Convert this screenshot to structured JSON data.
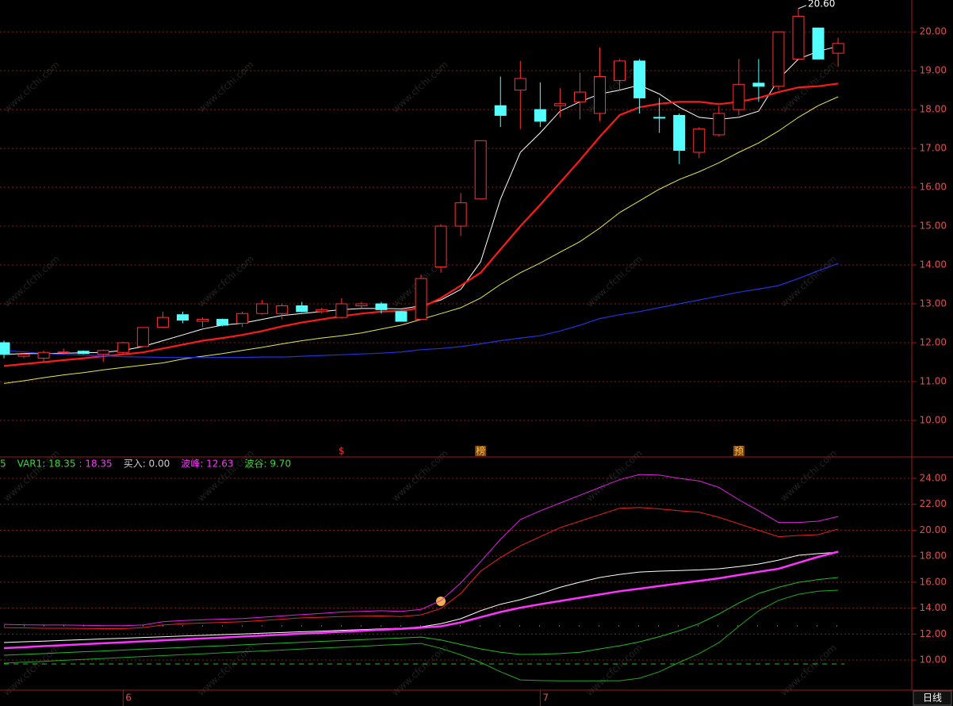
{
  "watermark": "www.cfchi.com",
  "period_label": "日线",
  "chart_data": [
    {
      "type": "candlestick",
      "up_color": "#ff3232",
      "down_color": "#54ffff",
      "grid": true,
      "ylim": [
        9.08,
        20.82
      ],
      "yticks": [
        {
          "value": 10,
          "label": "10.00"
        },
        {
          "value": 11,
          "label": "11.00"
        },
        {
          "value": 12,
          "label": "12.00"
        },
        {
          "value": 13,
          "label": "13.00"
        },
        {
          "value": 14,
          "label": "14.00"
        },
        {
          "value": 15,
          "label": "15.00"
        },
        {
          "value": 16,
          "label": "16.00"
        },
        {
          "value": 17,
          "label": "17.00"
        },
        {
          "value": 18,
          "label": "18.00"
        },
        {
          "value": 19,
          "label": "19.00"
        },
        {
          "value": 20,
          "label": "20.00"
        }
      ],
      "open": [
        12.0,
        11.65,
        11.6,
        11.74,
        11.78,
        11.7,
        11.75,
        11.9,
        12.4,
        12.72,
        12.55,
        12.6,
        12.5,
        12.75,
        12.75,
        12.95,
        12.8,
        12.65,
        12.95,
        13.0,
        12.8,
        12.6,
        13.95,
        15.0,
        15.7,
        18.1,
        18.5,
        18.0,
        18.1,
        18.2,
        17.9,
        18.75,
        19.25,
        17.8,
        17.85,
        16.9,
        17.35,
        18.0,
        18.68,
        18.6,
        19.3,
        20.1,
        19.45
      ],
      "high": [
        12.05,
        11.72,
        11.8,
        11.85,
        11.8,
        11.82,
        12.02,
        12.4,
        12.8,
        12.8,
        12.65,
        12.62,
        12.8,
        13.1,
        13.0,
        13.05,
        12.9,
        13.15,
        13.05,
        13.05,
        12.82,
        13.75,
        15.05,
        15.85,
        17.2,
        18.85,
        19.25,
        18.7,
        18.55,
        18.95,
        19.6,
        19.3,
        19.3,
        18.3,
        17.9,
        17.55,
        18.1,
        19.3,
        19.3,
        20.0,
        20.6,
        20.1,
        19.85
      ],
      "low": [
        11.6,
        11.6,
        11.5,
        11.7,
        11.7,
        11.5,
        11.72,
        11.88,
        12.38,
        12.5,
        12.4,
        12.42,
        12.4,
        12.72,
        12.6,
        12.78,
        12.75,
        12.62,
        12.9,
        12.75,
        12.55,
        12.58,
        13.8,
        14.75,
        15.68,
        17.55,
        17.5,
        17.55,
        17.8,
        17.75,
        17.7,
        18.5,
        17.9,
        17.4,
        16.6,
        16.75,
        17.3,
        17.85,
        18.2,
        18.5,
        19.3,
        19.3,
        19.1
      ],
      "close": [
        11.7,
        11.7,
        11.75,
        11.76,
        11.72,
        11.8,
        12.0,
        12.39,
        12.65,
        12.58,
        12.6,
        12.45,
        12.75,
        13.0,
        12.95,
        12.8,
        12.85,
        13.0,
        13.0,
        12.85,
        12.55,
        13.65,
        15.0,
        15.6,
        17.2,
        17.85,
        18.8,
        17.7,
        18.15,
        18.45,
        18.85,
        19.25,
        18.3,
        17.78,
        16.95,
        17.5,
        17.9,
        18.65,
        18.6,
        20.0,
        20.4,
        19.3,
        19.7
      ],
      "high_label": {
        "text": "20.60",
        "value": 20.6
      },
      "signals": [
        null,
        null,
        null,
        null,
        null,
        null,
        null,
        null,
        null,
        null,
        null,
        null,
        null,
        null,
        null,
        null,
        null,
        "$",
        null,
        null,
        null,
        null,
        null,
        null,
        "榜",
        null,
        null,
        null,
        null,
        null,
        null,
        null,
        null,
        null,
        null,
        null,
        null,
        "预",
        null,
        null,
        null,
        null,
        null
      ],
      "series": [
        {
          "color": "#ffffff",
          "width": 1,
          "values": [
            11.7,
            11.72,
            11.72,
            11.73,
            11.74,
            11.75,
            11.8,
            11.9,
            12.05,
            12.2,
            12.35,
            12.45,
            12.5,
            12.6,
            12.7,
            12.75,
            12.8,
            12.85,
            12.88,
            12.88,
            12.87,
            12.95,
            13.1,
            13.37,
            14.08,
            15.7,
            16.9,
            17.4,
            17.96,
            18.2,
            18.4,
            18.5,
            18.63,
            18.4,
            18.06,
            17.8,
            17.75,
            17.8,
            17.96,
            18.78,
            19.3,
            19.5,
            19.63
          ]
        },
        {
          "color": "#ff1a1a",
          "width": 2.2,
          "values": [
            11.4,
            11.45,
            11.5,
            11.55,
            11.6,
            11.65,
            11.7,
            11.75,
            11.85,
            11.95,
            12.05,
            12.12,
            12.2,
            12.3,
            12.42,
            12.52,
            12.6,
            12.68,
            12.75,
            12.8,
            12.82,
            12.9,
            13.15,
            13.47,
            13.8,
            14.4,
            15.0,
            15.55,
            16.12,
            16.7,
            17.3,
            17.86,
            18.06,
            18.15,
            18.2,
            18.2,
            18.14,
            18.2,
            18.3,
            18.45,
            18.57,
            18.6,
            18.67
          ]
        },
        {
          "color": "#e8e84a",
          "width": 1,
          "values": [
            10.95,
            11.02,
            11.1,
            11.17,
            11.23,
            11.3,
            11.36,
            11.42,
            11.48,
            11.58,
            11.65,
            11.72,
            11.8,
            11.88,
            11.97,
            12.05,
            12.12,
            12.18,
            12.25,
            12.35,
            12.45,
            12.6,
            12.75,
            12.9,
            13.15,
            13.5,
            13.8,
            14.05,
            14.33,
            14.6,
            14.95,
            15.35,
            15.65,
            15.95,
            16.2,
            16.4,
            16.63,
            16.9,
            17.14,
            17.45,
            17.8,
            18.1,
            18.33
          ]
        },
        {
          "color": "#2233dd",
          "width": 1.2,
          "values": [
            11.8,
            11.76,
            11.72,
            11.7,
            11.68,
            11.66,
            11.64,
            11.63,
            11.62,
            11.62,
            11.62,
            11.62,
            11.62,
            11.63,
            11.63,
            11.65,
            11.67,
            11.69,
            11.71,
            11.73,
            11.76,
            11.82,
            11.85,
            11.9,
            11.97,
            12.05,
            12.12,
            12.18,
            12.3,
            12.45,
            12.62,
            12.72,
            12.8,
            12.9,
            13.0,
            13.1,
            13.2,
            13.3,
            13.38,
            13.47,
            13.65,
            13.85,
            14.04
          ]
        }
      ]
    },
    {
      "type": "line",
      "grid": true,
      "ylim": [
        7.68,
        25.53
      ],
      "yticks": [
        {
          "value": 10,
          "label": "10.00"
        },
        {
          "value": 12,
          "label": "12.00"
        },
        {
          "value": 14,
          "label": "14.00"
        },
        {
          "value": 16,
          "label": "16.00"
        },
        {
          "value": 18,
          "label": "18.00"
        },
        {
          "value": 20,
          "label": "20.00"
        },
        {
          "value": 22,
          "label": "22.00"
        },
        {
          "value": 24,
          "label": "24.00"
        }
      ],
      "categories": [
        null,
        null,
        null,
        null,
        null,
        null,
        "6",
        null,
        null,
        null,
        null,
        null,
        null,
        null,
        null,
        null,
        null,
        null,
        null,
        null,
        null,
        null,
        null,
        null,
        null,
        null,
        null,
        "7",
        null,
        null,
        null,
        null,
        null,
        null,
        null,
        null,
        null,
        null,
        null,
        null,
        null,
        null,
        null
      ],
      "header": [
        {
          "text": "5",
          "color": "#33dd33"
        },
        {
          "text": "VAR1: 18.35",
          "color": "#33dd33"
        },
        {
          "text": ": 18.35",
          "color": "#ff33ff"
        },
        {
          "text": "买入: 0.00",
          "color": "#cccccc"
        },
        {
          "text": "波峰: 12.63",
          "color": "#ff33ff"
        },
        {
          "text": "波谷: 9.70",
          "color": "#33dd33"
        }
      ],
      "levels": [
        {
          "value": 12.63,
          "color": "#bbbbbb",
          "dash": "1 24"
        },
        {
          "value": 9.7,
          "color": "#22bb22",
          "dash": "6 6"
        }
      ],
      "series": [
        {
          "color": "#e020e0",
          "width": 1,
          "values": [
            12.75,
            12.72,
            12.7,
            12.7,
            12.68,
            12.65,
            12.65,
            12.7,
            12.95,
            13.05,
            13.1,
            13.15,
            13.2,
            13.3,
            13.4,
            13.5,
            13.6,
            13.7,
            13.75,
            13.8,
            13.75,
            13.9,
            14.58,
            15.93,
            17.58,
            19.3,
            20.82,
            21.5,
            22.1,
            22.7,
            23.3,
            23.9,
            24.3,
            24.25,
            24.0,
            23.8,
            23.3,
            22.35,
            21.5,
            20.6,
            20.6,
            20.7,
            21.06
          ]
        },
        {
          "color": "#ee2020",
          "width": 1,
          "values": [
            12.5,
            12.48,
            12.45,
            12.45,
            12.43,
            12.42,
            12.42,
            12.5,
            12.7,
            12.8,
            12.85,
            12.9,
            12.95,
            13.05,
            13.15,
            13.25,
            13.3,
            13.35,
            13.38,
            13.4,
            13.35,
            13.48,
            13.97,
            15.13,
            16.85,
            17.9,
            18.8,
            19.5,
            20.2,
            20.7,
            21.2,
            21.7,
            21.75,
            21.65,
            21.5,
            21.4,
            21.0,
            20.5,
            20.0,
            19.5,
            19.6,
            19.66,
            20.1
          ]
        },
        {
          "color": "#ffffff",
          "width": 1,
          "values": [
            11.35,
            11.41,
            11.46,
            11.52,
            11.57,
            11.63,
            11.68,
            11.74,
            11.79,
            11.85,
            11.9,
            11.96,
            12.01,
            12.07,
            12.12,
            12.18,
            12.23,
            12.29,
            12.34,
            12.4,
            12.45,
            12.55,
            12.8,
            13.18,
            13.8,
            14.3,
            14.65,
            15.1,
            15.6,
            16.0,
            16.36,
            16.6,
            16.78,
            16.85,
            16.9,
            16.95,
            17.03,
            17.2,
            17.4,
            17.7,
            18.07,
            18.2,
            18.31
          ]
        },
        {
          "color": "#ff33ff",
          "width": 2.5,
          "values": [
            10.92,
            10.99,
            11.07,
            11.14,
            11.22,
            11.29,
            11.36,
            11.44,
            11.51,
            11.59,
            11.66,
            11.73,
            11.81,
            11.88,
            11.96,
            12.03,
            12.1,
            12.18,
            12.25,
            12.33,
            12.4,
            12.5,
            12.6,
            12.9,
            13.3,
            13.7,
            14.03,
            14.3,
            14.55,
            14.8,
            15.05,
            15.3,
            15.5,
            15.7,
            15.9,
            16.1,
            16.3,
            16.55,
            16.8,
            17.03,
            17.5,
            17.95,
            18.35
          ]
        },
        {
          "color": "#22bb22",
          "width": 1,
          "values": [
            10.37,
            10.44,
            10.5,
            10.57,
            10.64,
            10.7,
            10.77,
            10.84,
            10.9,
            10.97,
            11.04,
            11.1,
            11.17,
            11.24,
            11.3,
            11.37,
            11.44,
            11.5,
            11.57,
            11.64,
            11.7,
            11.77,
            11.55,
            11.2,
            10.86,
            10.6,
            10.43,
            10.45,
            10.5,
            10.6,
            10.86,
            11.1,
            11.4,
            11.8,
            12.26,
            12.8,
            13.55,
            14.4,
            15.13,
            15.6,
            15.99,
            16.2,
            16.36
          ]
        },
        {
          "color": "#1fa81f",
          "width": 1,
          "values": [
            9.76,
            9.83,
            9.9,
            9.98,
            10.05,
            10.12,
            10.19,
            10.27,
            10.34,
            10.41,
            10.48,
            10.56,
            10.63,
            10.7,
            10.77,
            10.85,
            10.92,
            10.99,
            11.06,
            11.14,
            11.21,
            11.28,
            10.9,
            10.4,
            9.82,
            9.1,
            8.47,
            8.42,
            8.4,
            8.4,
            8.4,
            8.41,
            8.6,
            9.1,
            9.82,
            10.5,
            11.34,
            12.6,
            13.79,
            14.6,
            15.07,
            15.3,
            15.38
          ]
        }
      ]
    }
  ]
}
